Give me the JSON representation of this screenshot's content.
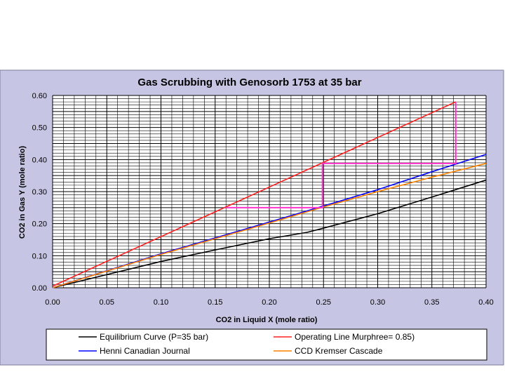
{
  "chart_data": {
    "type": "line",
    "title": "Gas Scrubbing with Genosorb 1753 at 35 bar",
    "xlabel": "CO2 in Liquid X (mole ratio)",
    "ylabel": "CO2 in Gas Y (mole ratio)",
    "xlim": [
      0,
      0.4
    ],
    "ylim": [
      0,
      0.6
    ],
    "x_ticks": [
      "0.00",
      "0.05",
      "0.10",
      "0.15",
      "0.20",
      "0.25",
      "0.30",
      "0.35",
      "0.40"
    ],
    "y_ticks": [
      "0.00",
      "0.10",
      "0.20",
      "0.30",
      "0.40",
      "0.50",
      "0.60"
    ],
    "grid": true,
    "legend_position": "bottom",
    "colors": {
      "plot_background": "#ffffff",
      "chart_background": "#c6c6e4",
      "grid": "#000000",
      "stages": "#ff33cc"
    },
    "series": [
      {
        "name": "Equilibrium Curve (P=35 bar)",
        "color": "#000000",
        "x": [
          0,
          0.05,
          0.1,
          0.15,
          0.2,
          0.235,
          0.25,
          0.3,
          0.35,
          0.4
        ],
        "y": [
          0,
          0.041,
          0.082,
          0.118,
          0.153,
          0.173,
          0.186,
          0.231,
          0.283,
          0.336
        ]
      },
      {
        "name": "Operating Line Murphree= 0.85)",
        "color": "#ff2020",
        "x": [
          0,
          0.372
        ],
        "y": [
          0.005,
          0.58
        ]
      },
      {
        "name": "Henni Canadian Journal",
        "color": "#0000ff",
        "x": [
          0,
          0.1,
          0.2,
          0.25,
          0.3,
          0.35,
          0.4
        ],
        "y": [
          0,
          0.106,
          0.205,
          0.255,
          0.306,
          0.362,
          0.416
        ]
      },
      {
        "name": "CCD Kremser Cascade",
        "color": "#ff8000",
        "x": [
          0,
          0.1,
          0.2,
          0.25,
          0.3,
          0.35,
          0.4
        ],
        "y": [
          0,
          0.104,
          0.202,
          0.252,
          0.3,
          0.345,
          0.388
        ]
      }
    ],
    "stages": {
      "x": [
        0.372,
        0.372,
        0.249,
        0.249,
        0.16
      ],
      "y": [
        0.58,
        0.388,
        0.388,
        0.25,
        0.25
      ]
    }
  }
}
